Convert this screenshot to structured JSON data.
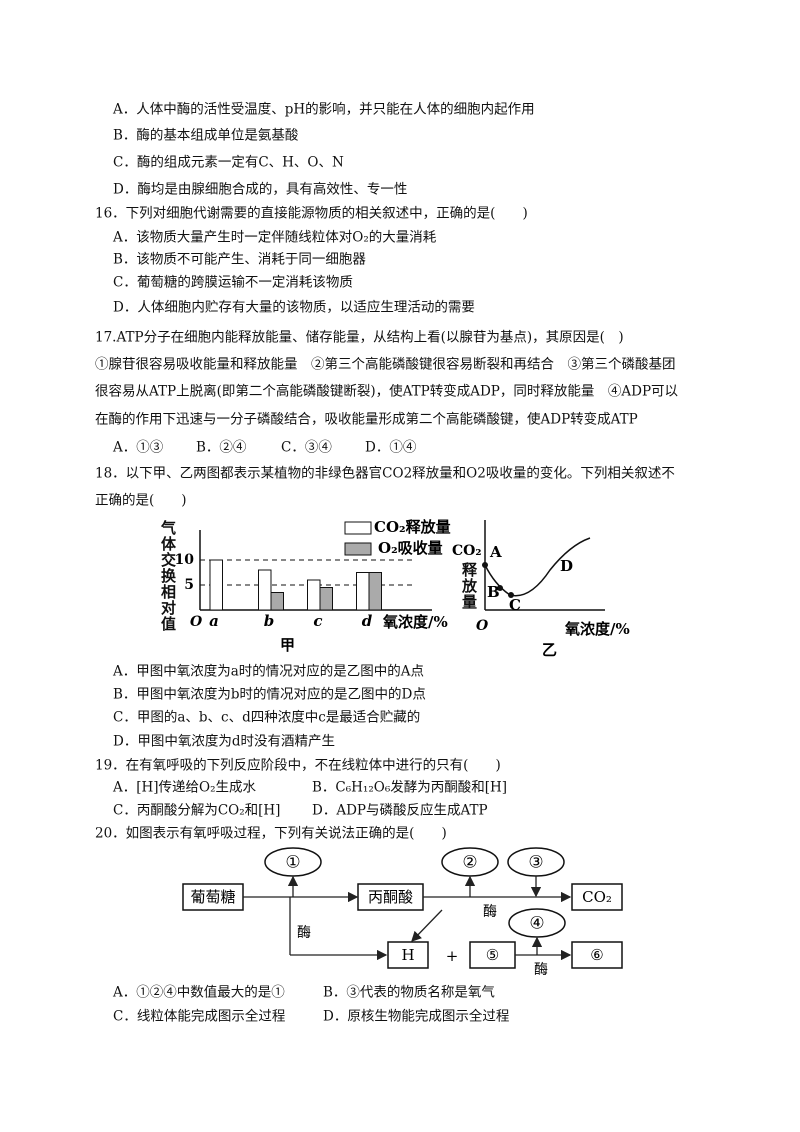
{
  "q15": {
    "options": [
      "A．人体中酶的活性受温度、pH的影响，并只能在人体的细胞内起作用",
      "B．酶的基本组成单位是氨基酸",
      "C．酶的组成元素一定有C、H、O、N",
      "D．酶均是由腺细胞合成的，具有高效性、专一性"
    ]
  },
  "q16": {
    "stem": "16．下列对细胞代谢需要的直接能源物质的相关叙述中，正确的是(　　)",
    "options": [
      "A．该物质大量产生时一定伴随线粒体对O₂的大量消耗",
      "B．该物质不可能产生、消耗于同一细胞器",
      "C．葡萄糖的跨膜运输不一定消耗该物质",
      "D．人体细胞内贮存有大量的该物质，以适应生理活动的需要"
    ]
  },
  "q17": {
    "stem": "17.ATP分子在细胞内能释放能量、储存能量，从结构上看(以腺苷为基点)，其原因是(　)",
    "statements": [
      "①腺苷很容易吸收能量和释放能量　②第三个高能磷酸键很容易断裂和再结合　③第三个磷酸基团",
      "很容易从ATP上脱离(即第二个高能磷酸键断裂)，使ATP转变成ADP，同时释放能量　④ADP可以",
      "在酶的作用下迅速与一分子磷酸结合，吸收能量形成第二个高能磷酸键，使ADP转变成ATP"
    ],
    "options": [
      "A．①③",
      "B．②④",
      "C．③④",
      "D．①④"
    ]
  },
  "q18": {
    "stem": [
      "18．以下甲、乙两图都表示某植物的非绿色器官CO2释放量和O2吸收量的变化。下列相关叙述不",
      "正确的是(　　)"
    ],
    "figure_a": {
      "type": "bar",
      "y_label": "气体交换相对值",
      "categories": [
        "a",
        "b",
        "c",
        "d"
      ],
      "series": [
        {
          "name": "CO₂释放量",
          "color": "#ffffff",
          "values": [
            10,
            8,
            6,
            7.5
          ]
        },
        {
          "name": "O₂吸收量",
          "color": "#aaaaaa",
          "values": [
            0,
            3.5,
            4.5,
            7.5
          ]
        }
      ],
      "ylim": [
        0,
        16
      ],
      "yticks": [
        5,
        10
      ],
      "grid": true,
      "origin_label": "O",
      "x_label": "氧浓度/%",
      "caption": "甲"
    },
    "figure_b": {
      "y_label": "CO₂",
      "y_label_2": "释放量",
      "points": [
        "A",
        "B",
        "C",
        "D"
      ],
      "origin_label": "O",
      "x_label": "氧浓度/%",
      "caption": "乙"
    },
    "options": [
      "A．甲图中氧浓度为a时的情况对应的是乙图中的A点",
      "B．甲图中氧浓度为b时的情况对应的是乙图中的D点",
      "C．甲图的a、b、c、d四种浓度中c是最适合贮藏的",
      "D．甲图中氧浓度为d时没有酒精产生"
    ]
  },
  "q19": {
    "stem": "19．在有氧呼吸的下列反应阶段中，不在线粒体中进行的只有(　　)",
    "options": [
      "A．[H]传递给O₂生成水",
      "B．C₆H₁₂O₆发酵为丙酮酸和[H]",
      "C．丙酮酸分解为CO₂和[H]",
      "D．ADP与磷酸反应生成ATP"
    ]
  },
  "q20": {
    "stem": "20．如图表示有氧呼吸过程，下列有关说法正确的是(　　)",
    "diagram": {
      "boxes": [
        "葡萄糖",
        "丙酮酸",
        "CO₂",
        "H",
        "⑤",
        "⑥"
      ],
      "ovals": [
        "①",
        "②",
        "③",
        "④"
      ],
      "plus": "+",
      "enzyme": [
        "酶",
        "酶",
        "酶"
      ]
    },
    "options": [
      "A．①②④中数值最大的是①",
      "B．③代表的物质名称是氧气",
      "C．线粒体能完成图示全过程",
      "D．原核生物能完成图示全过程"
    ]
  }
}
